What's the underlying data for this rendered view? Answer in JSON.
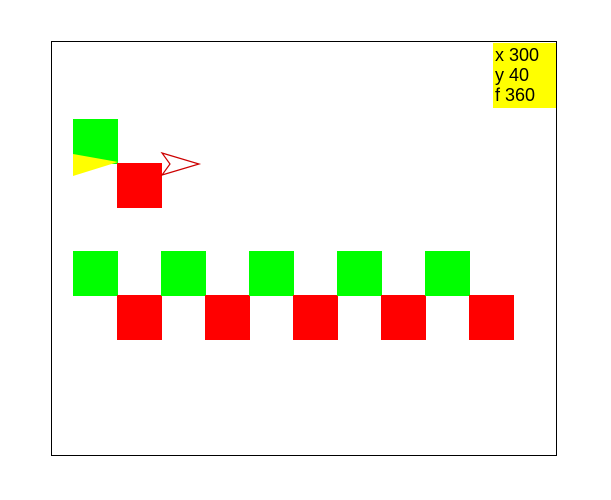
{
  "colors": {
    "green": "#00ff00",
    "red": "#ff0000",
    "yellow": "#ffff00",
    "outline": "#000000",
    "turtle_stroke": "#cc0000"
  },
  "readout": {
    "x_line": "x 300",
    "y_line": "y 40",
    "f_line": "f 360"
  },
  "sprites": {
    "turtle": {
      "icon": "turtle-arrow-icon",
      "color": "red-outline"
    },
    "wedge": {
      "icon": "yellow-wedge-icon",
      "color": "yellow"
    }
  },
  "top_pattern": [
    {
      "color": "green",
      "col": 0,
      "row": 0
    },
    {
      "color": "red",
      "col": 1,
      "row": 1
    }
  ],
  "bottom_pattern": [
    {
      "color": "green",
      "col": 0,
      "row": 0
    },
    {
      "color": "red",
      "col": 1,
      "row": 1
    },
    {
      "color": "green",
      "col": 2,
      "row": 0
    },
    {
      "color": "red",
      "col": 3,
      "row": 1
    },
    {
      "color": "green",
      "col": 4,
      "row": 0
    },
    {
      "color": "red",
      "col": 5,
      "row": 1
    },
    {
      "color": "green",
      "col": 6,
      "row": 0
    },
    {
      "color": "red",
      "col": 7,
      "row": 1
    },
    {
      "color": "green",
      "col": 8,
      "row": 0
    },
    {
      "color": "red",
      "col": 9,
      "row": 1
    }
  ]
}
